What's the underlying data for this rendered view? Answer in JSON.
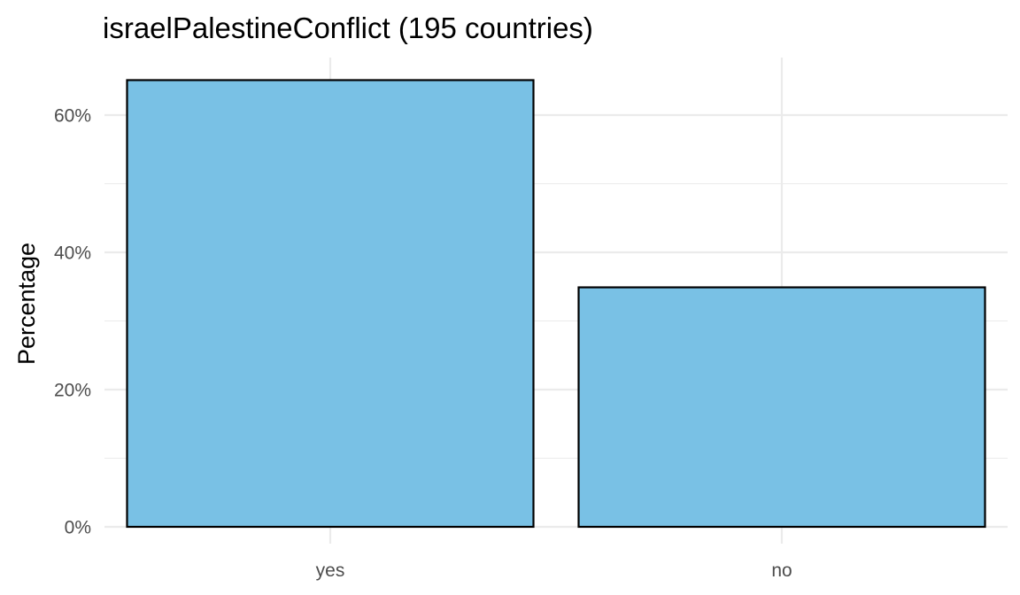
{
  "chart_data": {
    "type": "bar",
    "title": "israelPalestineConflict (195 countries)",
    "xlabel": "",
    "ylabel": "Percentage",
    "categories": [
      "yes",
      "no"
    ],
    "values": [
      65.1,
      34.9
    ],
    "ylim": [
      0,
      67.5
    ],
    "yticks": [
      0,
      20,
      40,
      60
    ],
    "ytick_labels": [
      "0%",
      "20%",
      "40%",
      "60%"
    ],
    "grid": true,
    "legend": "none",
    "bar_color": "#79C1E5",
    "bar_border_color": "#000000"
  }
}
